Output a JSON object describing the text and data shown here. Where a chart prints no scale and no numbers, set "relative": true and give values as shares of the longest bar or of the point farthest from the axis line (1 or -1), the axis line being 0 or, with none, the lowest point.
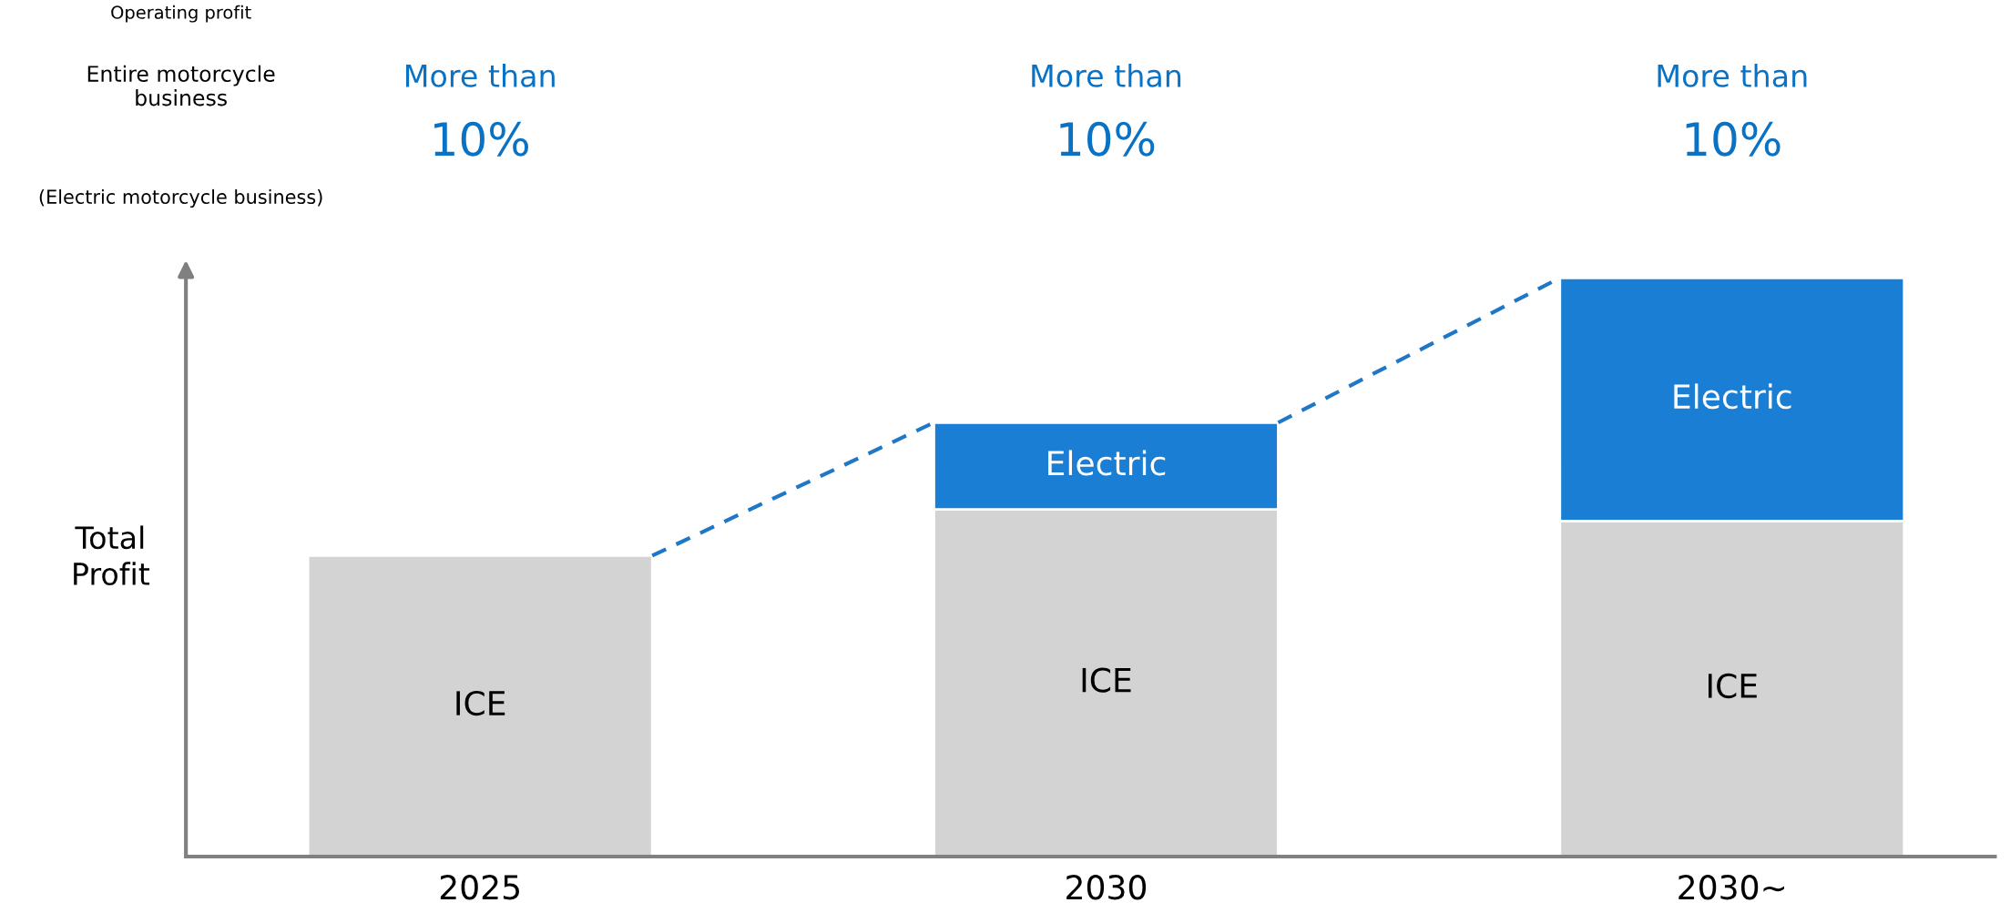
{
  "chart_data": {
    "type": "bar",
    "stacked": true,
    "relative": true,
    "ylabel": "Total\nProfit",
    "categories": [
      "2025",
      "2030",
      "2030∼"
    ],
    "series": [
      {
        "name": "ICE",
        "color": "#d3d3d3",
        "values": [
          0.52,
          0.6,
          0.58
        ]
      },
      {
        "name": "Electric",
        "color": "#1a7fd4",
        "values": [
          null,
          0.15,
          0.42
        ]
      }
    ],
    "annotations": [
      "Operating profit",
      "Entire motorcycle\nbusiness",
      "(Electric motorcycle business)",
      "More than\n10%",
      "More than\n10%",
      "More than\n10%"
    ],
    "legend": false,
    "grid": false
  }
}
